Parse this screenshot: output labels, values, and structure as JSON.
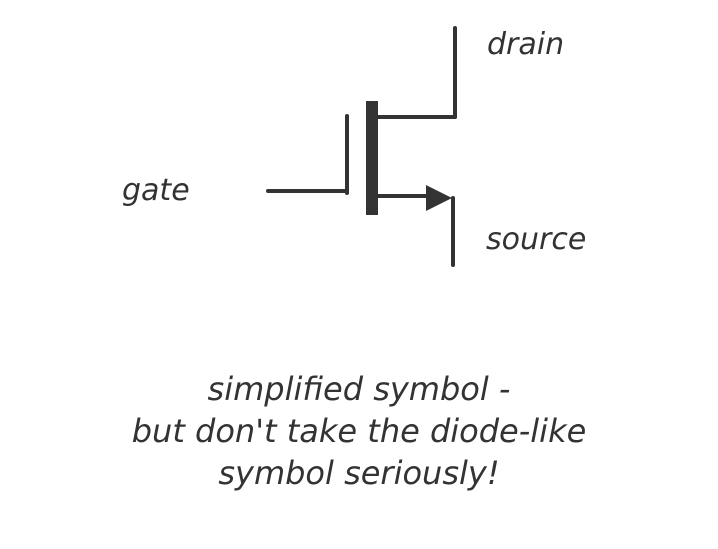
{
  "labels": {
    "drain": "drain",
    "gate": "gate",
    "source": "source"
  },
  "caption": {
    "line1": "simplified symbol -",
    "line2": "but don't take the diode-like",
    "line3": "symbol seriously!"
  },
  "colors": {
    "ink": "#333333",
    "background": "#ffffff"
  }
}
